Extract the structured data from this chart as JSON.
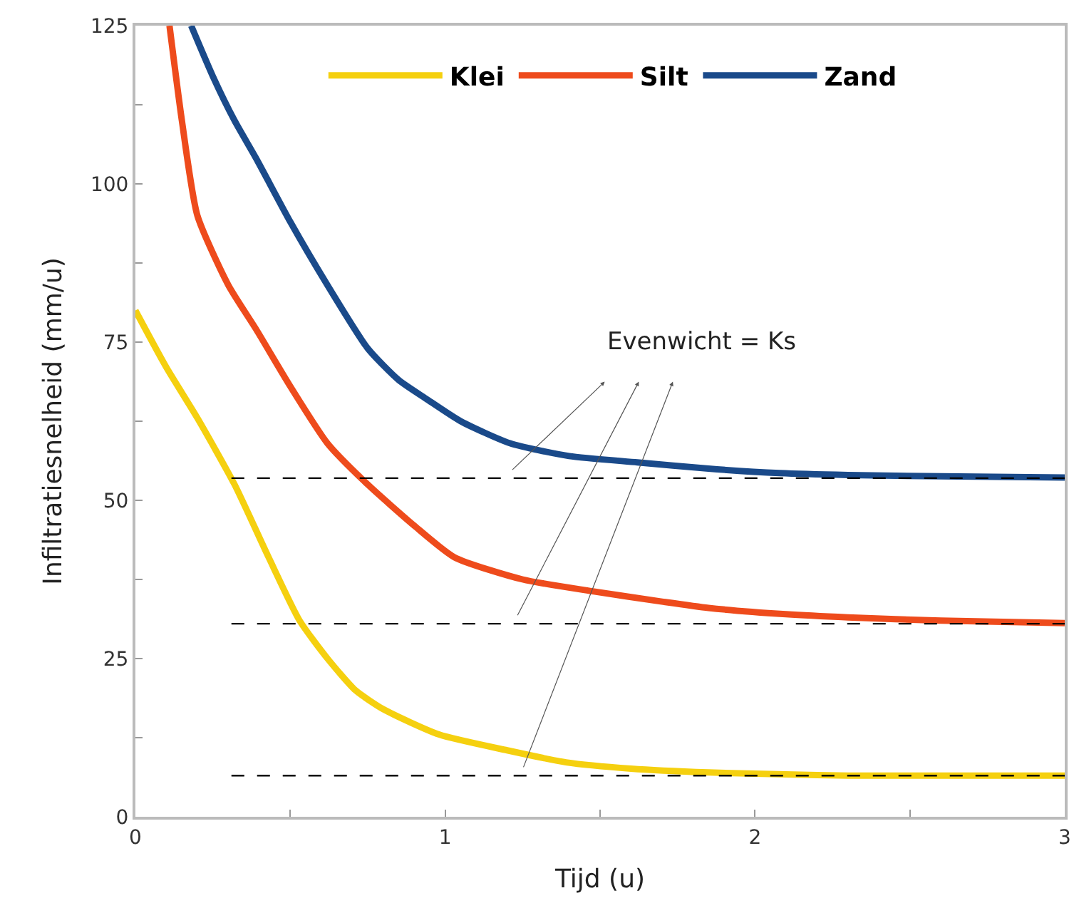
{
  "chart_data": {
    "type": "line",
    "xlabel": "Tijd (u)",
    "ylabel": "Infiltratiesnelheid (mm/u)",
    "xlim": [
      0,
      3
    ],
    "xticks": [
      0,
      {
        "value": 0.5,
        "label": null
      },
      1,
      {
        "value": 1.5,
        "label": null
      },
      2,
      {
        "value": 2.5,
        "label": null
      },
      3
    ],
    "ylim": [
      0,
      125
    ],
    "yticks": [
      0,
      {
        "value": 12.5,
        "label": null
      },
      25,
      {
        "value": 37.5,
        "label": null
      },
      50,
      {
        "value": 62.5,
        "label": null
      },
      75,
      {
        "value": 87.5,
        "label": null
      },
      100,
      {
        "value": 112.5,
        "label": null
      },
      125
    ],
    "legend": "top",
    "marker": "none",
    "annotations": [
      "Evenwicht = Ks"
    ],
    "series": [
      {
        "name": "Klei",
        "color": "#f5d00f",
        "x": [
          0,
          0.1,
          0.2,
          0.32,
          0.43,
          0.53,
          0.62,
          0.71,
          0.8,
          0.98,
          1.2,
          1.39,
          1.6,
          1.85,
          2.1,
          2.3,
          2.6,
          3
        ],
        "values": [
          80,
          71,
          63,
          52.5,
          41,
          31,
          25,
          20,
          17,
          13,
          10.5,
          8.6,
          7.6,
          7,
          6.7,
          6.5,
          6.5,
          6.5
        ]
      },
      {
        "name": "Silt",
        "color": "#ee4b1c",
        "x": [
          0.11,
          0.15,
          0.2,
          0.3,
          0.39,
          0.5,
          0.62,
          0.75,
          0.9,
          1.03,
          1.25,
          1.48,
          1.7,
          1.85,
          2.1,
          2.3,
          2.6,
          3
        ],
        "values": [
          125,
          110,
          95,
          84,
          77,
          68,
          59,
          52.5,
          46,
          41,
          37.5,
          35.6,
          34,
          33,
          32,
          31.5,
          31,
          30.6
        ]
      },
      {
        "name": "Zand",
        "color": "#1a4a8a",
        "x": [
          0.18,
          0.25,
          0.32,
          0.39,
          0.5,
          0.62,
          0.75,
          0.85,
          0.94,
          1.05,
          1.21,
          1.4,
          1.62,
          1.85,
          2.08,
          2.3,
          2.6,
          3
        ],
        "values": [
          125,
          117,
          110,
          104,
          94,
          84,
          74,
          69,
          66,
          62.5,
          59,
          57,
          56,
          55,
          54.3,
          54,
          53.8,
          53.6
        ]
      },
      {
        "color": "#000000",
        "line_style": "dashed",
        "x": [
          0.31,
          3
        ],
        "values": [
          53.5,
          53.5
        ]
      },
      {
        "color": "#000000",
        "line_style": "dashed",
        "x": [
          0.31,
          3
        ],
        "values": [
          30.5,
          30.5
        ]
      },
      {
        "color": "#000000",
        "line_style": "dashed",
        "x": [
          0.31,
          3
        ],
        "values": [
          6.5,
          6.5
        ]
      }
    ]
  }
}
